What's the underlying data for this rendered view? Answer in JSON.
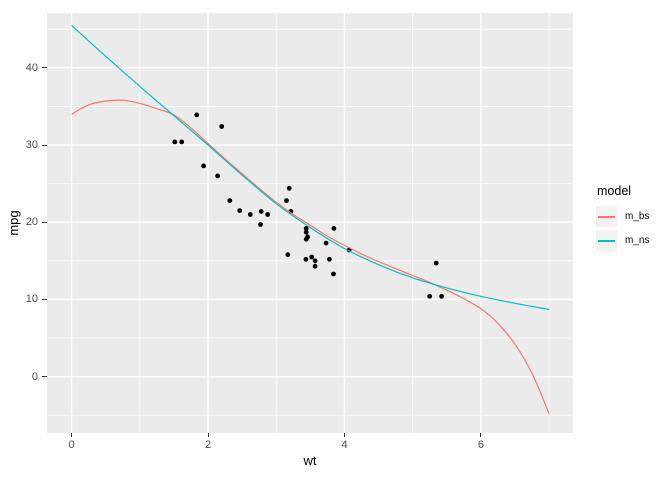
{
  "figure": {
    "background": "#FFFFFF"
  },
  "axis": {
    "tick_color": "#333333",
    "tick_label_color": "#4D4D4D",
    "title_color": "#000000"
  },
  "chart_data": {
    "type": "scatter",
    "title": "",
    "xlabel": "wt",
    "ylabel": "mpg",
    "grid": true,
    "panel_background": "#EBEBEB",
    "grid_color": "#FFFFFF",
    "point_color": "#000000",
    "x_domain": [
      -0.36,
      7.35
    ],
    "y_domain": [
      -7.3,
      47.1
    ],
    "x_major_ticks": [
      0,
      2,
      4,
      6
    ],
    "y_major_ticks": [
      0,
      10,
      20,
      30,
      40
    ],
    "x_minor_ticks": [
      1,
      3,
      5,
      7
    ],
    "y_minor_ticks": [
      -5,
      5,
      15,
      25,
      35,
      45
    ],
    "points": [
      [
        2.62,
        21.0
      ],
      [
        2.875,
        21.0
      ],
      [
        2.32,
        22.8
      ],
      [
        3.215,
        21.4
      ],
      [
        3.44,
        18.7
      ],
      [
        3.46,
        18.1
      ],
      [
        3.57,
        14.3
      ],
      [
        3.19,
        24.4
      ],
      [
        3.15,
        22.8
      ],
      [
        3.44,
        19.2
      ],
      [
        3.44,
        17.8
      ],
      [
        4.07,
        16.4
      ],
      [
        3.73,
        17.3
      ],
      [
        3.78,
        15.2
      ],
      [
        5.25,
        10.4
      ],
      [
        5.424,
        10.4
      ],
      [
        5.345,
        14.7
      ],
      [
        2.2,
        32.4
      ],
      [
        1.615,
        30.4
      ],
      [
        1.835,
        33.9
      ],
      [
        2.465,
        21.5
      ],
      [
        3.52,
        15.5
      ],
      [
        3.435,
        15.2
      ],
      [
        3.84,
        13.3
      ],
      [
        3.845,
        19.2
      ],
      [
        1.935,
        27.3
      ],
      [
        2.14,
        26.0
      ],
      [
        1.513,
        30.4
      ],
      [
        3.17,
        15.8
      ],
      [
        2.77,
        19.7
      ],
      [
        3.57,
        15.0
      ],
      [
        2.78,
        21.4
      ]
    ],
    "series": [
      {
        "name": "m_bs",
        "color": "#F8766D",
        "x": [
          0,
          0.25,
          0.5,
          0.75,
          1,
          1.25,
          1.5,
          1.75,
          2,
          2.25,
          2.5,
          2.75,
          3,
          3.25,
          3.5,
          3.75,
          4,
          4.25,
          4.5,
          4.75,
          5,
          5.25,
          5.5,
          5.75,
          6,
          6.25,
          6.5,
          6.75,
          7
        ],
        "y": [
          34.0,
          35.2,
          35.7,
          35.8,
          35.4,
          34.7,
          33.9,
          32.2,
          30.2,
          28.2,
          26.3,
          24.4,
          22.6,
          21.0,
          19.6,
          18.2,
          17.0,
          15.9,
          14.9,
          14.0,
          13.1,
          12.2,
          11.2,
          10.1,
          8.8,
          6.9,
          4.2,
          0.4,
          -4.8
        ]
      },
      {
        "name": "m_ns",
        "color": "#00BFC4",
        "x": [
          0,
          0.5,
          1,
          1.5,
          2,
          2.5,
          3,
          3.5,
          4,
          4.5,
          5,
          5.5,
          6,
          6.5,
          7
        ],
        "y": [
          45.5,
          41.5,
          37.6,
          33.8,
          30.0,
          26.1,
          22.4,
          19.3,
          16.6,
          14.5,
          12.8,
          11.5,
          10.4,
          9.5,
          8.7
        ]
      }
    ],
    "legend": {
      "title": "model",
      "position": "right",
      "key_fill": "#F2F2F2",
      "entries": [
        {
          "label": "m_bs",
          "color": "#F8766D"
        },
        {
          "label": "m_ns",
          "color": "#00BFC4"
        }
      ]
    }
  }
}
